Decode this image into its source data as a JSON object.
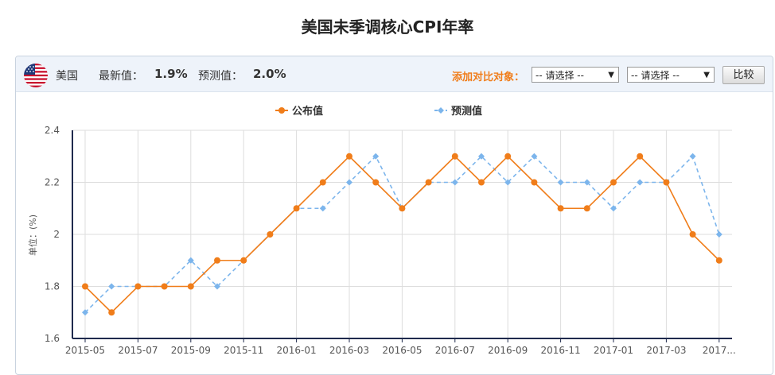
{
  "page": {
    "title": "美国未季调核心CPI年率"
  },
  "toolbar": {
    "country": "美国",
    "latest_label": "最新值：",
    "latest_value": "1.9%",
    "forecast_label": "预测值：",
    "forecast_value": "2.0%",
    "compare_label": "添加对比对象：",
    "select1": "-- 请选择 --",
    "select2": "-- 请选择 --",
    "compare_button": "比较",
    "flag_icon": "us-flag-icon"
  },
  "colors": {
    "published": "#f07d1a",
    "forecast": "#7cb5ec",
    "compare_label": "#f07d1a",
    "axis": "#1f2a4d"
  },
  "chart_data": {
    "type": "line",
    "title": "",
    "ylabel": "单位：(%)",
    "xlabel": "",
    "ylim": [
      1.6,
      2.4
    ],
    "yticks": [
      "1.6",
      "1.8",
      "2",
      "2.2",
      "2.4"
    ],
    "x": [
      "2015-05",
      "2015-06",
      "2015-07",
      "2015-08",
      "2015-09",
      "2015-10",
      "2015-11",
      "2015-12",
      "2016-01",
      "2016-02",
      "2016-03",
      "2016-04",
      "2016-05",
      "2016-06",
      "2016-07",
      "2016-08",
      "2016-09",
      "2016-10",
      "2016-11",
      "2016-12",
      "2017-01",
      "2017-02",
      "2017-03",
      "2017-04",
      "2017-05"
    ],
    "xtick_labels": [
      "2015-05",
      "2015-07",
      "2015-09",
      "2015-11",
      "2016-01",
      "2016-03",
      "2016-05",
      "2016-07",
      "2016-09",
      "2016-11",
      "2017-01",
      "2017-03",
      "2017..."
    ],
    "grid": true,
    "legend_position": "top-center",
    "series": [
      {
        "name": "公布值",
        "style": "solid",
        "marker": "circle",
        "values": [
          1.8,
          1.7,
          1.8,
          1.8,
          1.8,
          1.9,
          1.9,
          2.0,
          2.1,
          2.2,
          2.3,
          2.2,
          2.1,
          2.2,
          2.3,
          2.2,
          2.3,
          2.2,
          2.1,
          2.1,
          2.2,
          2.3,
          2.2,
          2.0,
          1.9
        ]
      },
      {
        "name": "预测值",
        "style": "dashed",
        "marker": "diamond",
        "values": [
          1.7,
          1.8,
          1.8,
          1.8,
          1.9,
          1.8,
          1.9,
          2.0,
          2.1,
          2.1,
          2.2,
          2.3,
          2.1,
          2.2,
          2.2,
          2.3,
          2.2,
          2.3,
          2.2,
          2.2,
          2.1,
          2.2,
          2.2,
          2.3,
          2.0
        ]
      }
    ]
  }
}
